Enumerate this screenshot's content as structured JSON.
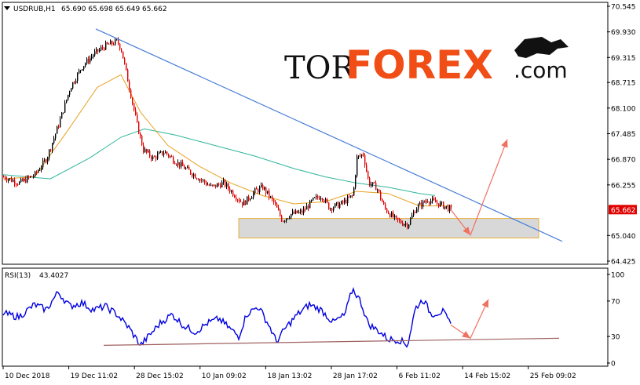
{
  "header": {
    "symbol": "USDRUB,H1",
    "ohlc": "65.690 65.698 65.649 65.662"
  },
  "logo": {
    "part1": "TOR",
    "part2": "FOREX",
    "part3": ".com"
  },
  "colors": {
    "candle_up": "#000000",
    "candle_down": "#e00000",
    "ma_fast": "#e8a020",
    "ma_slow": "#2fb59a",
    "trendline": "#4a7fd8",
    "support_zone_fill": "#d8d8d8",
    "support_zone_border": "#e8b040",
    "forecast_arrow": "#f07060",
    "rsi_line": "#0000e0",
    "rsi_trendline": "#a06060",
    "price_tag_bg": "#e00000"
  },
  "chart_data": [
    {
      "type": "line",
      "name": "price-panel",
      "title": "USDRUB,H1",
      "current_price": 65.662,
      "current_price_label": "65.662",
      "ylim": [
        64.425,
        70.545
      ],
      "y_ticks": [
        "70.545",
        "69.930",
        "69.315",
        "68.715",
        "68.100",
        "67.485",
        "66.870",
        "66.255",
        "65.662",
        "65.040",
        "64.425"
      ],
      "x_ticks": [
        "10 Dec 2018",
        "19 Dec 11:02",
        "28 Dec 15:02",
        "10 Jan 09:02",
        "18 Jan 13:02",
        "28 Jan 17:02",
        "6 Feb 11:02",
        "14 Feb 15:02",
        "25 Feb 09:02"
      ],
      "price_path": [
        [
          0,
          66.45
        ],
        [
          20,
          66.3
        ],
        [
          40,
          66.5
        ],
        [
          55,
          66.9
        ],
        [
          70,
          67.7
        ],
        [
          85,
          68.6
        ],
        [
          100,
          69.1
        ],
        [
          115,
          69.4
        ],
        [
          130,
          69.6
        ],
        [
          145,
          69.7
        ],
        [
          150,
          69.5
        ],
        [
          160,
          68.6
        ],
        [
          170,
          67.7
        ],
        [
          178,
          67.1
        ],
        [
          190,
          66.9
        ],
        [
          205,
          67.05
        ],
        [
          220,
          66.8
        ],
        [
          235,
          66.6
        ],
        [
          250,
          66.4
        ],
        [
          265,
          66.2
        ],
        [
          280,
          66.3
        ],
        [
          295,
          66.0
        ],
        [
          305,
          65.8
        ],
        [
          320,
          66.1
        ],
        [
          330,
          66.2
        ],
        [
          345,
          65.8
        ],
        [
          355,
          65.4
        ],
        [
          365,
          65.55
        ],
        [
          380,
          65.6
        ],
        [
          395,
          65.9
        ],
        [
          405,
          66.0
        ],
        [
          415,
          65.7
        ],
        [
          430,
          65.8
        ],
        [
          445,
          66.0
        ],
        [
          450,
          66.9
        ],
        [
          458,
          67.0
        ],
        [
          465,
          66.3
        ],
        [
          475,
          66.2
        ],
        [
          485,
          65.7
        ],
        [
          500,
          65.4
        ],
        [
          515,
          65.3
        ],
        [
          525,
          65.7
        ],
        [
          540,
          65.9
        ],
        [
          555,
          65.8
        ],
        [
          570,
          65.66
        ]
      ],
      "ma_fast_path": [
        [
          0,
          66.4
        ],
        [
          40,
          66.45
        ],
        [
          80,
          67.5
        ],
        [
          120,
          68.6
        ],
        [
          150,
          68.9
        ],
        [
          175,
          68.0
        ],
        [
          210,
          67.2
        ],
        [
          250,
          66.7
        ],
        [
          290,
          66.3
        ],
        [
          330,
          66.0
        ],
        [
          370,
          65.8
        ],
        [
          410,
          65.85
        ],
        [
          450,
          66.1
        ],
        [
          490,
          66.05
        ],
        [
          530,
          65.75
        ],
        [
          570,
          65.75
        ]
      ],
      "ma_slow_path": [
        [
          0,
          66.5
        ],
        [
          60,
          66.4
        ],
        [
          110,
          66.9
        ],
        [
          150,
          67.4
        ],
        [
          180,
          67.6
        ],
        [
          220,
          67.45
        ],
        [
          270,
          67.2
        ],
        [
          320,
          66.95
        ],
        [
          370,
          66.65
        ],
        [
          410,
          66.45
        ],
        [
          450,
          66.3
        ],
        [
          490,
          66.2
        ],
        [
          530,
          66.05
        ],
        [
          550,
          66.0
        ]
      ],
      "trendline": [
        [
          118,
          70.0
        ],
        [
          712,
          64.9
        ]
      ],
      "support_zone": {
        "x": [
          300,
          682
        ],
        "y": [
          64.98,
          65.45
        ]
      },
      "forecast_arrow": [
        [
          570,
          65.66
        ],
        [
          595,
          65.05
        ],
        [
          642,
          67.35
        ]
      ]
    },
    {
      "type": "line",
      "name": "rsi-panel",
      "title": "RSI(13)",
      "current_value": 43.4027,
      "current_value_label": "43.4027",
      "ylim": [
        0,
        100
      ],
      "y_ticks": [
        "100",
        "70",
        "30",
        "0"
      ],
      "rsi_path": [
        [
          0,
          56
        ],
        [
          20,
          52
        ],
        [
          40,
          66
        ],
        [
          55,
          60
        ],
        [
          70,
          80
        ],
        [
          85,
          64
        ],
        [
          100,
          68
        ],
        [
          115,
          60
        ],
        [
          130,
          64
        ],
        [
          145,
          55
        ],
        [
          160,
          40
        ],
        [
          175,
          20
        ],
        [
          185,
          30
        ],
        [
          200,
          45
        ],
        [
          215,
          55
        ],
        [
          230,
          42
        ],
        [
          245,
          35
        ],
        [
          260,
          45
        ],
        [
          275,
          50
        ],
        [
          290,
          38
        ],
        [
          300,
          30
        ],
        [
          310,
          55
        ],
        [
          325,
          64
        ],
        [
          340,
          40
        ],
        [
          348,
          24
        ],
        [
          360,
          40
        ],
        [
          375,
          55
        ],
        [
          390,
          66
        ],
        [
          405,
          60
        ],
        [
          420,
          46
        ],
        [
          435,
          54
        ],
        [
          445,
          84
        ],
        [
          455,
          70
        ],
        [
          465,
          44
        ],
        [
          480,
          35
        ],
        [
          490,
          27
        ],
        [
          505,
          26
        ],
        [
          515,
          20
        ],
        [
          525,
          62
        ],
        [
          535,
          72
        ],
        [
          545,
          55
        ],
        [
          560,
          58
        ],
        [
          570,
          43
        ]
      ],
      "trendline": [
        [
          128,
          20
        ],
        [
          708,
          28
        ]
      ],
      "forecast_arrow": [
        [
          570,
          43
        ],
        [
          595,
          28
        ],
        [
          618,
          72
        ]
      ]
    }
  ]
}
